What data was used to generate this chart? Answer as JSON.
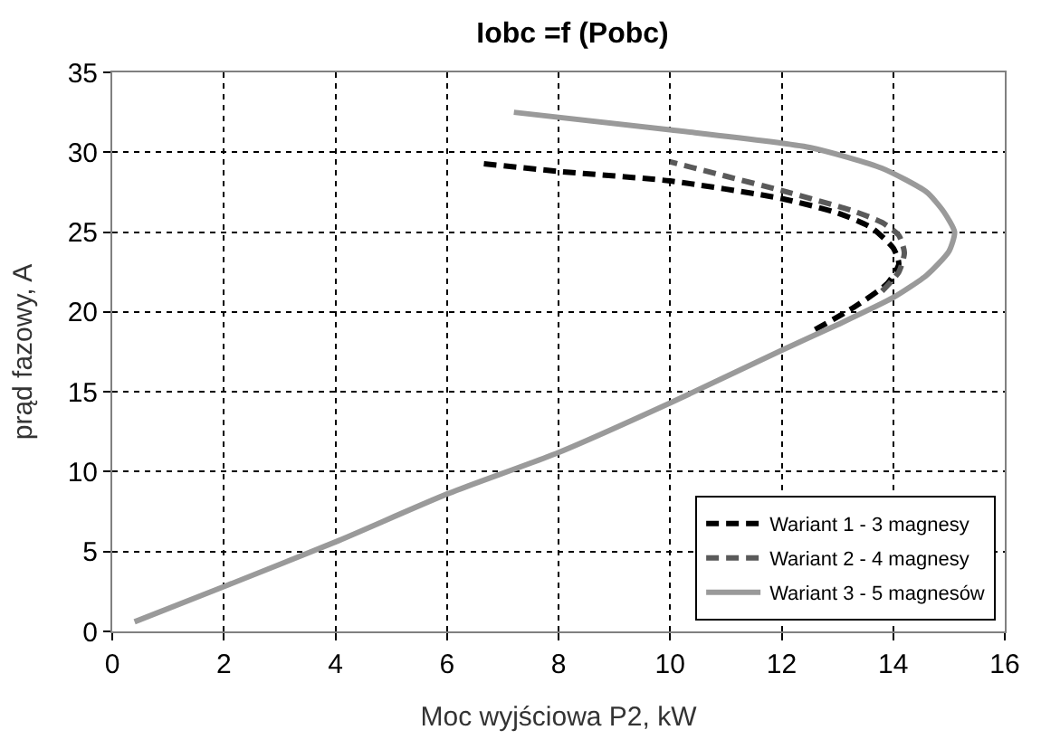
{
  "chart_data": {
    "type": "line",
    "title": "Iobc =f (Pobc)",
    "xlabel": "Moc wyjściowa P2, kW",
    "ylabel": "prąd fazowy, A",
    "xlim": [
      0,
      16
    ],
    "ylim": [
      0,
      35
    ],
    "xticks": [
      0,
      2,
      4,
      6,
      8,
      10,
      12,
      14,
      16
    ],
    "yticks": [
      0,
      5,
      10,
      15,
      20,
      25,
      30,
      35
    ],
    "grid": true,
    "legend": "bottom right",
    "marker": "none",
    "series": [
      {
        "name": "Wariant 1 - 3 magnesy",
        "color": "#000000",
        "line_style": "dashed",
        "x": [
          12.6,
          13.3,
          13.9,
          14.1,
          14.0,
          13.6,
          13.0,
          12.0,
          10.0,
          8.0,
          6.6
        ],
        "values": [
          18.9,
          20.3,
          21.8,
          23.0,
          24.0,
          25.3,
          26.2,
          27.1,
          28.2,
          28.8,
          29.3
        ]
      },
      {
        "name": "Wariant 2 - 4 magnesy",
        "color": "#5a5a5a",
        "line_style": "dashed",
        "x": [
          13.8,
          14.1,
          14.2,
          14.1,
          13.8,
          13.3,
          12.0,
          11.0,
          10.0
        ],
        "values": [
          21.3,
          22.5,
          23.7,
          24.8,
          25.6,
          26.3,
          27.6,
          28.5,
          29.4
        ]
      },
      {
        "name": "Wariant 3 - 5 magnesów",
        "color": "#9a9a9a",
        "line_style": "solid",
        "x": [
          0.4,
          2,
          4,
          6,
          8,
          10,
          12,
          13,
          14,
          14.6,
          15.0,
          15.1,
          14.9,
          14.6,
          13.8,
          12.5,
          10.0,
          7.2
        ],
        "values": [
          0.6,
          2.8,
          5.6,
          8.6,
          11.2,
          14.3,
          17.6,
          19.2,
          20.9,
          22.3,
          23.8,
          25.0,
          26.3,
          27.5,
          29.0,
          30.3,
          31.4,
          32.5
        ]
      }
    ]
  }
}
